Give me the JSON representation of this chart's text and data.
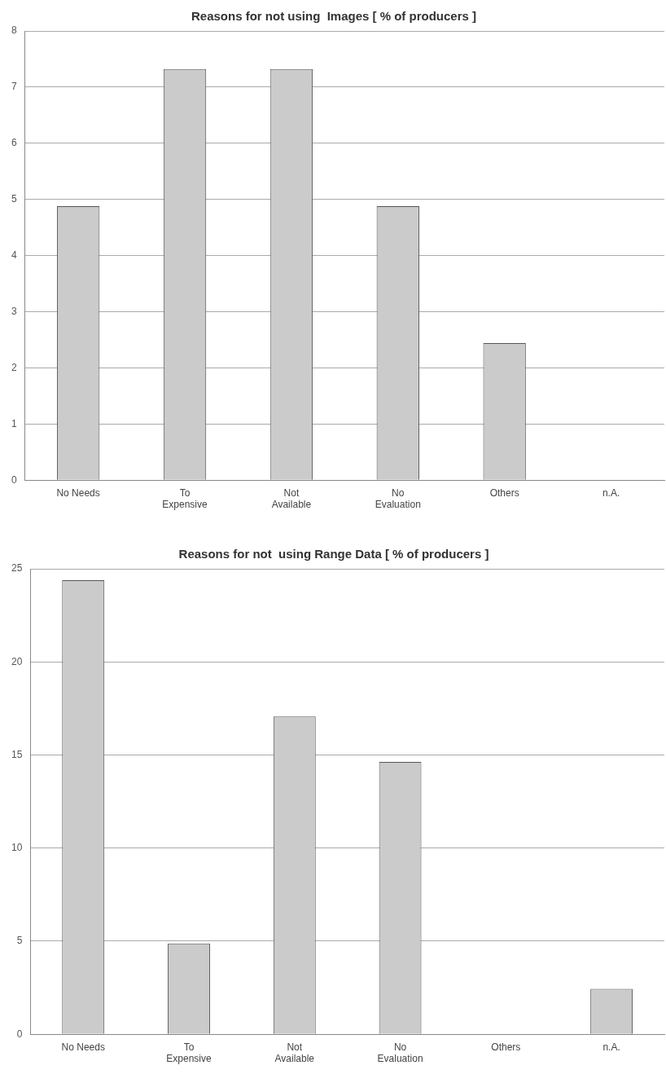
{
  "chart_data": [
    {
      "type": "bar",
      "title": "Reasons for not using  Images [ % of producers ]",
      "categories": [
        [
          "No Needs"
        ],
        [
          "To",
          "Expensive"
        ],
        [
          "Not",
          "Available"
        ],
        [
          "No",
          "Evaluation"
        ],
        [
          "Others"
        ],
        [
          "n.A."
        ]
      ],
      "values": [
        4.88,
        7.32,
        7.32,
        4.88,
        2.44,
        0
      ],
      "color": "#cbcbcb",
      "ylim": [
        0,
        8
      ],
      "yticks": [
        0,
        1,
        2,
        3,
        4,
        5,
        6,
        7,
        8
      ],
      "grid": "y"
    },
    {
      "type": "bar",
      "title": "Reasons for not  using Range Data [ % of producers ]",
      "categories": [
        [
          "No Needs"
        ],
        [
          "To",
          "Expensive"
        ],
        [
          "Not",
          "Available"
        ],
        [
          "No",
          "Evaluation"
        ],
        [
          "Others"
        ],
        [
          "n.A."
        ]
      ],
      "values": [
        24.39,
        4.88,
        17.07,
        14.63,
        0,
        2.44
      ],
      "color": "#cbcbcb",
      "ylim": [
        0,
        25
      ],
      "yticks": [
        0,
        5,
        10,
        15,
        20,
        25
      ],
      "grid": "y"
    }
  ]
}
